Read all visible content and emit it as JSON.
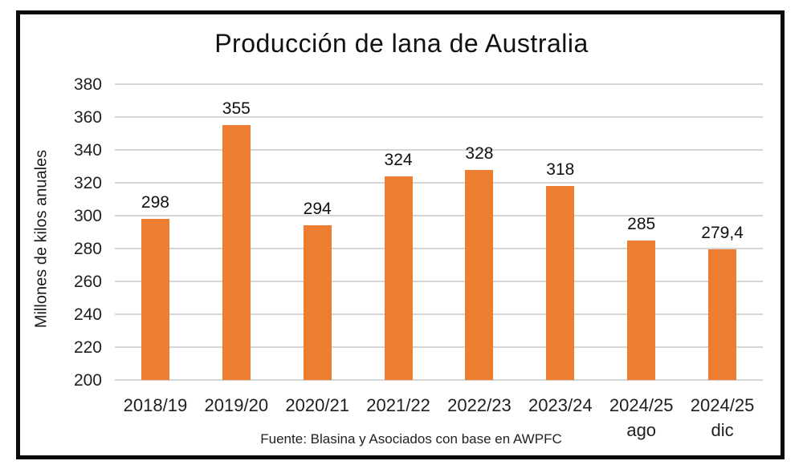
{
  "chart_data": {
    "type": "bar",
    "title": "Producción de lana de Australia",
    "ylabel": "Millones de kilos anuales",
    "xlabel": "",
    "source": "Fuente: Blasina y Asociados con base en AWPFC",
    "categories": [
      {
        "label": "2018/19",
        "sublabel": ""
      },
      {
        "label": "2019/20",
        "sublabel": ""
      },
      {
        "label": "2020/21",
        "sublabel": ""
      },
      {
        "label": "2021/22",
        "sublabel": ""
      },
      {
        "label": "2022/23",
        "sublabel": ""
      },
      {
        "label": "2023/24",
        "sublabel": ""
      },
      {
        "label": "2024/25",
        "sublabel": "ago"
      },
      {
        "label": "2024/25",
        "sublabel": "dic"
      }
    ],
    "values": [
      298,
      355,
      294,
      324,
      328,
      318,
      285,
      279.4
    ],
    "value_labels": [
      "298",
      "355",
      "294",
      "324",
      "328",
      "318",
      "285",
      "279,4"
    ],
    "ylim": [
      200,
      380
    ],
    "ytick_step": 20,
    "grid": true,
    "legend": false,
    "bar_color": "#ED7D31",
    "gridline_color": "#D6D6D6",
    "frame_color": "#0A0A0A"
  }
}
